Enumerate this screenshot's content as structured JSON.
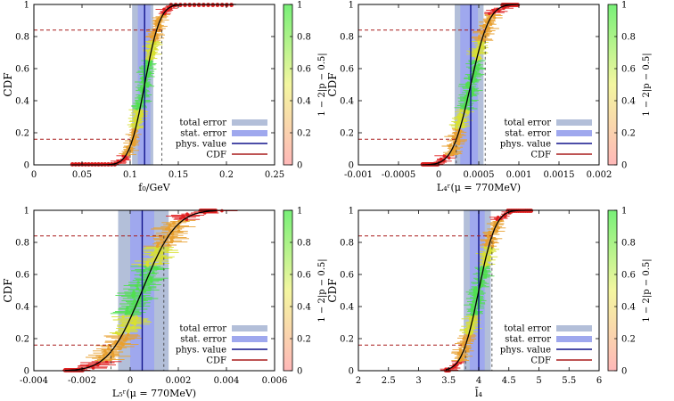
{
  "colors": {
    "total_error": "#b3bfd9",
    "stat_error": "#9fa8ee",
    "phys_value": "#10128c",
    "cdf_line": "#000000",
    "dashed": "#a81c1c",
    "points_low": "#e02020",
    "points_mid": "#d8e030",
    "points_high": "#50e050",
    "cbar_bottom": "#ffb8b8",
    "cbar_mid": "#f4f6a0",
    "cbar_top": "#78f078"
  },
  "chart_data": [
    {
      "type": "scatter",
      "xlabel": "f₀/GeV",
      "ylabel": "CDF",
      "colorbar_label": "1 − 2|p − 0.5|",
      "xlim": [
        0,
        0.25
      ],
      "xticks": [
        "0",
        "0.05",
        "0.1",
        "0.15",
        "0.2",
        "0.25"
      ],
      "ylim": [
        0,
        1
      ],
      "yticks": [
        "0",
        "0.2",
        "0.4",
        "0.6",
        "0.8",
        "1"
      ],
      "colorbar_ticks": [
        "0",
        "0.2",
        "0.4",
        "0.6",
        "0.8",
        "1"
      ],
      "legend": [
        "total error",
        "stat. error",
        "phys. value",
        "CDF"
      ],
      "central": 0.115,
      "total_band": [
        0.102,
        0.124
      ],
      "stat_band": [
        0.108,
        0.121
      ],
      "sigma_low": 0.1,
      "sigma_high": 0.133,
      "cdf_levels": [
        0.16,
        0.84
      ],
      "cdf_mu": 0.115,
      "cdf_sigma": 0.0125,
      "x_min": 0.04,
      "x_max": 0.21
    },
    {
      "type": "scatter",
      "xlabel": "L₄ʳ(μ = 770MeV)",
      "ylabel": "CDF",
      "colorbar_label": "1 − 2|p − 0.5|",
      "xlim": [
        -0.001,
        0.002
      ],
      "xticks": [
        "-0.001",
        "-0.0005",
        "0",
        "0.0005",
        "0.001",
        "0.0015",
        "0.002"
      ],
      "ylim": [
        0,
        1
      ],
      "yticks": [
        "0",
        "0.2",
        "0.4",
        "0.6",
        "0.8",
        "1"
      ],
      "colorbar_ticks": [
        "0",
        "0.2",
        "0.4",
        "0.6",
        "0.8",
        "1"
      ],
      "legend": [
        "total error",
        "stat. error",
        "phys. value",
        "CDF"
      ],
      "central": 0.0004,
      "total_band": [
        0.0002,
        0.00056
      ],
      "stat_band": [
        0.00027,
        0.00049
      ],
      "sigma_low": 0.00022,
      "sigma_high": 0.00058,
      "cdf_levels": [
        0.16,
        0.84
      ],
      "cdf_mu": 0.0004,
      "cdf_sigma": 0.00018,
      "x_min": -0.0002,
      "x_max": 0.001
    },
    {
      "type": "scatter",
      "xlabel": "L₅ʳ(μ = 770MeV)",
      "ylabel": "CDF",
      "colorbar_label": "1 − 2|p − 0.5|",
      "xlim": [
        -0.004,
        0.006
      ],
      "xticks": [
        "-0.004",
        "-0.002",
        "0",
        "0.002",
        "0.004",
        "0.006"
      ],
      "ylim": [
        0,
        1
      ],
      "yticks": [
        "0",
        "0.2",
        "0.4",
        "0.6",
        "0.8",
        "1"
      ],
      "colorbar_ticks": [
        "0",
        "0.2",
        "0.4",
        "0.6",
        "0.8",
        "1"
      ],
      "legend": [
        "total error",
        "stat. error",
        "phys. value",
        "CDF"
      ],
      "central": 0.0005,
      "total_band": [
        -0.0005,
        0.0016
      ],
      "stat_band": [
        0.0,
        0.001
      ],
      "sigma_low": -0.0008,
      "sigma_high": 0.0014,
      "cdf_levels": [
        0.16,
        0.84
      ],
      "cdf_mu": 0.0005,
      "cdf_sigma": 0.0011,
      "x_min": -0.0027,
      "x_max": 0.0036
    },
    {
      "type": "scatter",
      "xlabel": "l̄₄",
      "ylabel": "CDF",
      "colorbar_label": "1 − 2|p − 0.5|",
      "xlim": [
        2,
        6
      ],
      "xticks": [
        "2",
        "2.5",
        "3",
        "3.5",
        "4",
        "4.5",
        "5",
        "5.5",
        "6"
      ],
      "ylim": [
        0,
        1
      ],
      "yticks": [
        "0",
        "0.2",
        "0.4",
        "0.6",
        "0.8",
        "1"
      ],
      "colorbar_ticks": [
        "0",
        "0.2",
        "0.4",
        "0.6",
        "0.8",
        "1"
      ],
      "legend": [
        "total error",
        "stat. error",
        "phys. value",
        "CDF"
      ],
      "central": 4.0,
      "total_band": [
        3.75,
        4.2
      ],
      "stat_band": [
        3.85,
        4.1
      ],
      "sigma_low": 3.78,
      "sigma_high": 4.22,
      "cdf_levels": [
        0.16,
        0.84
      ],
      "cdf_mu": 4.0,
      "cdf_sigma": 0.22,
      "x_min": 3.45,
      "x_max": 4.9
    }
  ]
}
